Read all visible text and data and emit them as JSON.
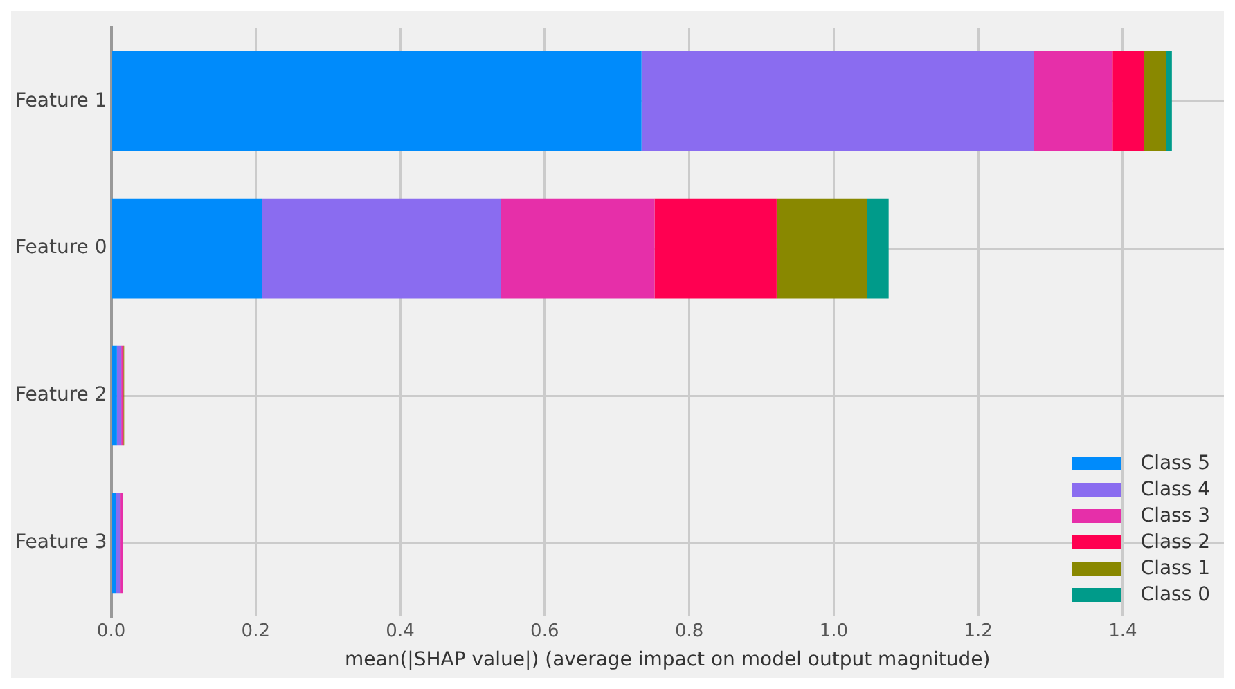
{
  "chart_data": {
    "type": "bar",
    "orientation": "horizontal",
    "stacked": true,
    "xlabel": "mean(|SHAP value|) (average impact on model output magnitude)",
    "categories": [
      "Feature 1",
      "Feature 0",
      "Feature 2",
      "Feature 3"
    ],
    "series": [
      {
        "name": "Class 5",
        "color": "#008bfb",
        "values": [
          0.734,
          0.209,
          0.008,
          0.007
        ]
      },
      {
        "name": "Class 4",
        "color": "#8a6cf0",
        "values": [
          0.543,
          0.33,
          0.006,
          0.006
        ]
      },
      {
        "name": "Class 3",
        "color": "#e62fa9",
        "values": [
          0.109,
          0.213,
          0.002,
          0.003
        ]
      },
      {
        "name": "Class 2",
        "color": "#ff0051",
        "values": [
          0.043,
          0.169,
          0.001,
          0.0
        ]
      },
      {
        "name": "Class 1",
        "color": "#898800",
        "values": [
          0.031,
          0.125,
          0.001,
          0.0
        ]
      },
      {
        "name": "Class 0",
        "color": "#009b8a",
        "values": [
          0.008,
          0.03,
          0.0,
          0.0
        ]
      }
    ],
    "xlim": [
      0,
      1.54
    ],
    "xticks": [
      {
        "value": 0,
        "label": "0.0"
      },
      0.2,
      0.4,
      0.6,
      0.8,
      {
        "value": 1,
        "label": "1.0"
      },
      1.2,
      1.4
    ],
    "grid": true,
    "legend": "bottom right"
  }
}
